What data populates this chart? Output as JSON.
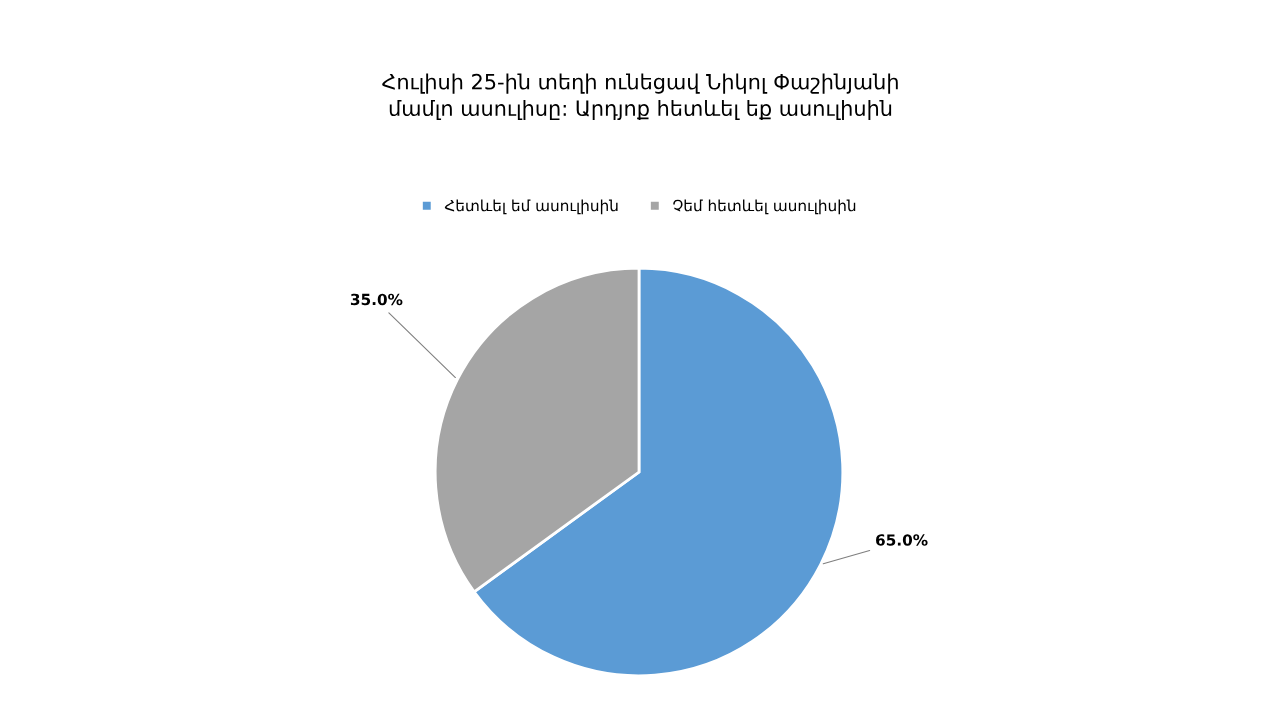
{
  "chart_data": {
    "type": "pie",
    "title": "Հուլիսի 25-ին տեղի ունեցավ Նիկոլ Փաշինյանի\nմամլո ասուլիսը: Արդյոք հետևել եք ասուլիսին",
    "categories": [
      "Հետևել եմ ասուլիսին",
      "Չեմ հետևել ասուլիսին"
    ],
    "values": [
      65.0,
      35.0
    ],
    "colors": [
      "#5b9bd5",
      "#a5a5a5"
    ],
    "value_labels": [
      "65.0%",
      "35.0%"
    ],
    "legend": "top"
  }
}
